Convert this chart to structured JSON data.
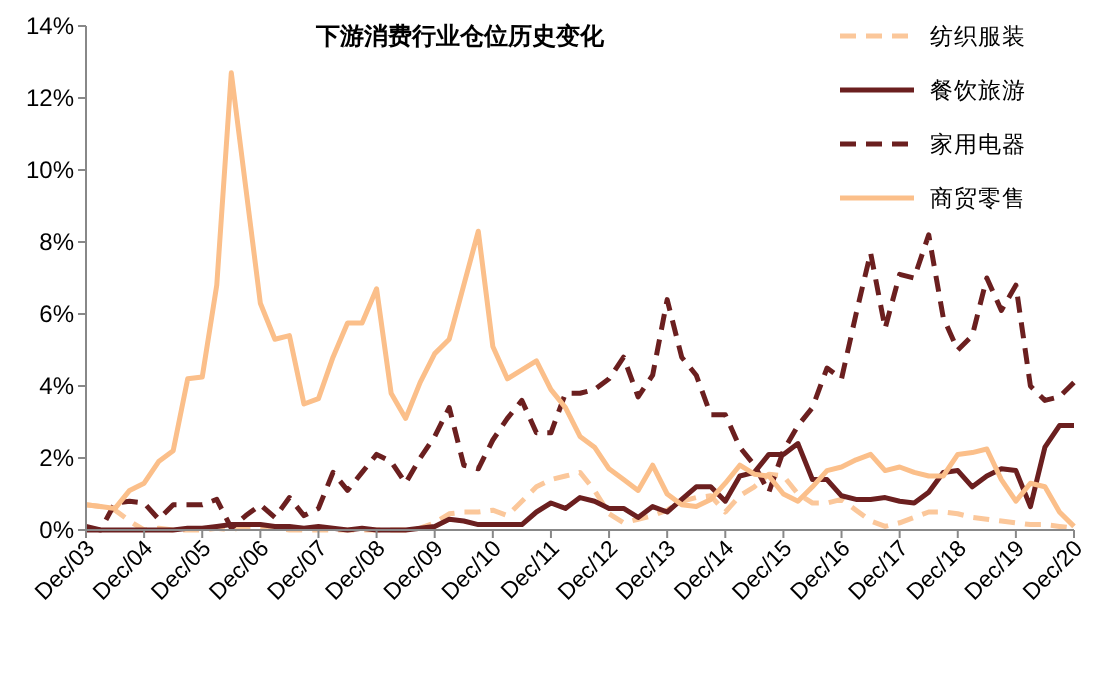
{
  "chart_data": {
    "type": "line",
    "title": "下游消费行业仓位历史变化",
    "categories": [
      "Dec/03",
      null,
      null,
      null,
      "Dec/04",
      null,
      null,
      null,
      "Dec/05",
      null,
      null,
      null,
      "Dec/06",
      null,
      null,
      null,
      "Dec/07",
      null,
      null,
      null,
      "Dec/08",
      null,
      null,
      null,
      "Dec/09",
      null,
      null,
      null,
      "Dec/10",
      null,
      null,
      null,
      "Dec/11",
      null,
      null,
      null,
      "Dec/12",
      null,
      null,
      null,
      "Dec/13",
      null,
      null,
      null,
      "Dec/14",
      null,
      null,
      null,
      "Dec/15",
      null,
      null,
      null,
      "Dec/16",
      null,
      null,
      null,
      "Dec/17",
      null,
      null,
      null,
      "Dec/18",
      null,
      null,
      null,
      "Dec/19",
      null,
      null,
      null,
      "Dec/20"
    ],
    "series": [
      {
        "name": "纺织服装",
        "color": "#fbc79a",
        "line_style": "dashed",
        "values": [
          0.7,
          0.65,
          0.55,
          0.25,
          0,
          0.05,
          0,
          0,
          0,
          0.05,
          0,
          0.1,
          0.1,
          0.05,
          0,
          0,
          0,
          0,
          0,
          0,
          0,
          0,
          0,
          0.05,
          0.2,
          0.45,
          0.5,
          0.5,
          0.55,
          0.4,
          0.8,
          1.2,
          1.4,
          1.5,
          1.6,
          1.1,
          0.45,
          0.2,
          0.3,
          0.4,
          0.55,
          0.8,
          0.9,
          0.95,
          0.5,
          0.95,
          1.2,
          1.55,
          1.5,
          1.0,
          0.75,
          0.75,
          0.85,
          0.55,
          0.25,
          0.1,
          0.2,
          0.35,
          0.5,
          0.5,
          0.45,
          0.35,
          0.3,
          0.25,
          0.2,
          0.15,
          0.15,
          0.1,
          0.05
        ]
      },
      {
        "name": "餐饮旅游",
        "color": "#6b1f1f",
        "line_style": "solid",
        "values": [
          0.1,
          0,
          0,
          0,
          0,
          0,
          0,
          0.05,
          0.05,
          0.1,
          0.15,
          0.15,
          0.15,
          0.1,
          0.1,
          0.05,
          0.1,
          0.05,
          0,
          0.05,
          0,
          0,
          0,
          0.05,
          0.1,
          0.3,
          0.25,
          0.15,
          0.15,
          0.15,
          0.15,
          0.5,
          0.75,
          0.6,
          0.9,
          0.8,
          0.6,
          0.6,
          0.35,
          0.65,
          0.5,
          0.85,
          1.2,
          1.2,
          0.8,
          1.5,
          1.6,
          2.1,
          2.1,
          2.4,
          1.4,
          1.4,
          0.95,
          0.85,
          0.85,
          0.9,
          0.8,
          0.75,
          1.05,
          1.6,
          1.65,
          1.2,
          1.5,
          1.7,
          1.65,
          0.65,
          2.3,
          2.9,
          2.9
        ]
      },
      {
        "name": "家用电器",
        "color": "#6b1f1f",
        "line_style": "dashed",
        "values": [
          0,
          0,
          0.75,
          0.8,
          0.75,
          0.3,
          0.7,
          0.7,
          0.7,
          0.85,
          0.05,
          0.4,
          0.7,
          0.35,
          0.9,
          0.4,
          0.6,
          1.6,
          1.1,
          1.6,
          2.1,
          1.9,
          1.3,
          2.0,
          2.6,
          3.4,
          1.8,
          1.7,
          2.5,
          3.1,
          3.6,
          2.7,
          2.7,
          3.8,
          3.8,
          3.9,
          4.2,
          4.8,
          3.7,
          4.3,
          6.4,
          4.8,
          4.3,
          3.2,
          3.2,
          2.3,
          1.8,
          1.05,
          2.2,
          2.9,
          3.4,
          4.5,
          4.2,
          6.0,
          7.7,
          5.6,
          7.1,
          7.0,
          8.2,
          5.9,
          5.0,
          5.4,
          7.0,
          6.1,
          6.8,
          4.0,
          3.6,
          3.7,
          4.1
        ]
      },
      {
        "name": "商贸零售",
        "color": "#fbbf8a",
        "line_style": "solid",
        "values": [
          0.7,
          0.65,
          0.6,
          1.1,
          1.3,
          1.9,
          2.2,
          4.2,
          4.25,
          6.8,
          12.7,
          9.5,
          6.3,
          5.3,
          5.4,
          3.5,
          3.65,
          4.8,
          5.75,
          5.75,
          6.7,
          3.8,
          3.1,
          4.1,
          4.9,
          5.3,
          6.8,
          8.3,
          5.1,
          4.2,
          4.45,
          4.7,
          3.9,
          3.4,
          2.6,
          2.3,
          1.7,
          1.4,
          1.1,
          1.8,
          1.0,
          0.7,
          0.65,
          0.85,
          1.3,
          1.8,
          1.55,
          1.5,
          1.0,
          0.8,
          1.2,
          1.65,
          1.75,
          1.95,
          2.1,
          1.65,
          1.75,
          1.6,
          1.5,
          1.5,
          2.1,
          2.15,
          2.25,
          1.4,
          0.8,
          1.3,
          1.2,
          0.5,
          0.1
        ]
      }
    ],
    "ylim": [
      0,
      14
    ],
    "yticks": [
      {
        "value": 0,
        "label": "0%"
      },
      {
        "value": 2,
        "label": "2%"
      },
      {
        "value": 4,
        "label": "4%"
      },
      {
        "value": 6,
        "label": "6%"
      },
      {
        "value": 8,
        "label": "8%"
      },
      {
        "value": 10,
        "label": "10%"
      },
      {
        "value": 12,
        "label": "12%"
      },
      {
        "value": 14,
        "label": "14%"
      }
    ],
    "grid": false,
    "legend": "top right",
    "marker": "none"
  }
}
